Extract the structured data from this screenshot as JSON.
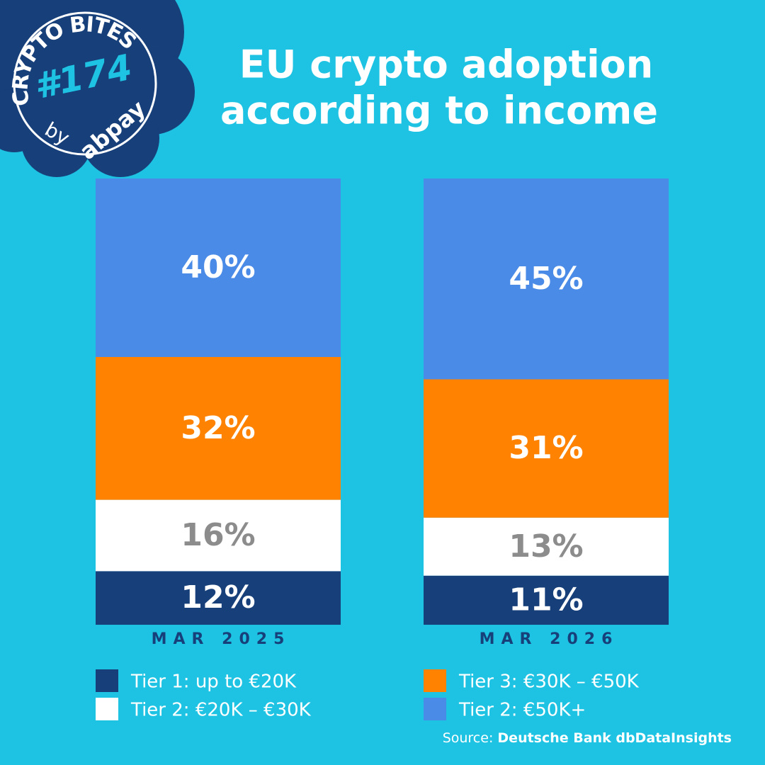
{
  "chart_data": {
    "type": "stacked_bar",
    "title_lines": [
      "EU crypto adoption",
      "according to income"
    ],
    "badge": {
      "title": "CRYPTO BITES",
      "number": "#174",
      "by": "by",
      "brand": "abpay"
    },
    "categories": [
      "MAR 2025",
      "MAR 2026"
    ],
    "series": [
      {
        "name": "Tier 1: up to €20K",
        "color": "#173f7a",
        "label_color": "#ffffff",
        "values": [
          12,
          11
        ],
        "value_labels": [
          "12%",
          "11%"
        ]
      },
      {
        "name": "Tier 2: €20K – €30K",
        "color": "#ffffff",
        "label_color": "#8c8c8c",
        "values": [
          16,
          13
        ],
        "value_labels": [
          "16%",
          "13%"
        ]
      },
      {
        "name": "Tier 3: €30K – €50K",
        "color": "#ff8200",
        "label_color": "#ffffff",
        "values": [
          32,
          31
        ],
        "value_labels": [
          "32%",
          "31%"
        ]
      },
      {
        "name": "Tier 2: €50K+",
        "color": "#4a8be8",
        "label_color": "#ffffff",
        "values": [
          40,
          45
        ],
        "value_labels": [
          "40%",
          "45%"
        ]
      }
    ],
    "ylim": [
      0,
      100
    ],
    "source_label": "Source:",
    "source": "Deutsche Bank dbDataInsights"
  }
}
